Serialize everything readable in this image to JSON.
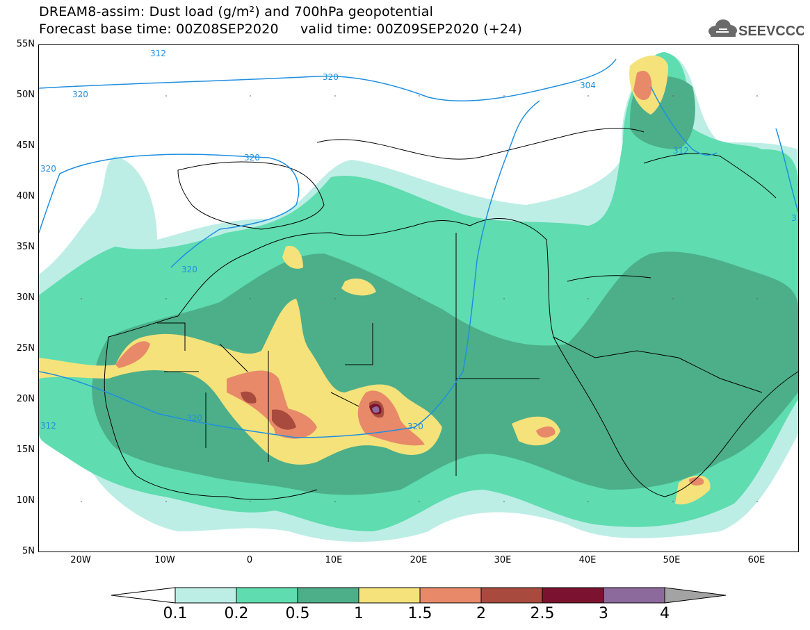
{
  "title": {
    "line1": "DREAM8-assim: Dust load (g/m²) and 700hPa geopotential",
    "line2": "Forecast base time: 00Z08SEP2020     valid time: 00Z09SEP2020 (+24)"
  },
  "logo": {
    "text": "SEEVCCC",
    "icon": "cloud-icon"
  },
  "map": {
    "lat_labels": [
      "55N",
      "50N",
      "45N",
      "40N",
      "35N",
      "30N",
      "25N",
      "20N",
      "15N",
      "10N",
      "5N"
    ],
    "lon_labels": [
      "20W",
      "10W",
      "0",
      "10E",
      "20E",
      "30E",
      "40E",
      "50E",
      "60E"
    ],
    "lat_range": [
      5,
      55
    ],
    "lon_range": [
      -25,
      65
    ],
    "contour_labels": [
      "320",
      "320",
      "320",
      "320",
      "320",
      "320",
      "304",
      "312",
      "312",
      "312",
      "320",
      "3"
    ],
    "contour_color": "#1f8fe0"
  },
  "legend": {
    "levels": [
      "0.1",
      "0.2",
      "0.5",
      "1",
      "1.5",
      "2",
      "2.5",
      "3",
      "4"
    ],
    "colors": [
      "#ffffff",
      "#bdeee6",
      "#5fdcb0",
      "#4caf8a",
      "#f5e27a",
      "#e8896a",
      "#a84b3e",
      "#7a1230",
      "#8c6a9c",
      "#a3a3a3"
    ]
  }
}
